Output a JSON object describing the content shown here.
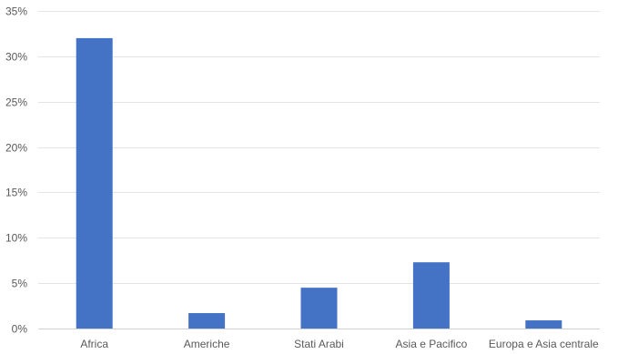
{
  "chart_data": {
    "type": "bar",
    "categories": [
      "Africa",
      "Americhe",
      "Stati Arabi",
      "Asia e Pacifico",
      "Europa e Asia centrale"
    ],
    "series": [
      {
        "values": [
          32.0,
          1.7,
          4.5,
          7.3,
          0.9
        ]
      }
    ],
    "ylim": [
      0,
      35
    ],
    "y_ticks": [
      0,
      5,
      10,
      15,
      20,
      25,
      30,
      35
    ],
    "y_tick_labels": [
      "0%",
      "5%",
      "10%",
      "15%",
      "20%",
      "25%",
      "30%",
      "35%"
    ],
    "grid": true,
    "legend": "none",
    "colors": {
      "bar": "#4472c4"
    }
  }
}
